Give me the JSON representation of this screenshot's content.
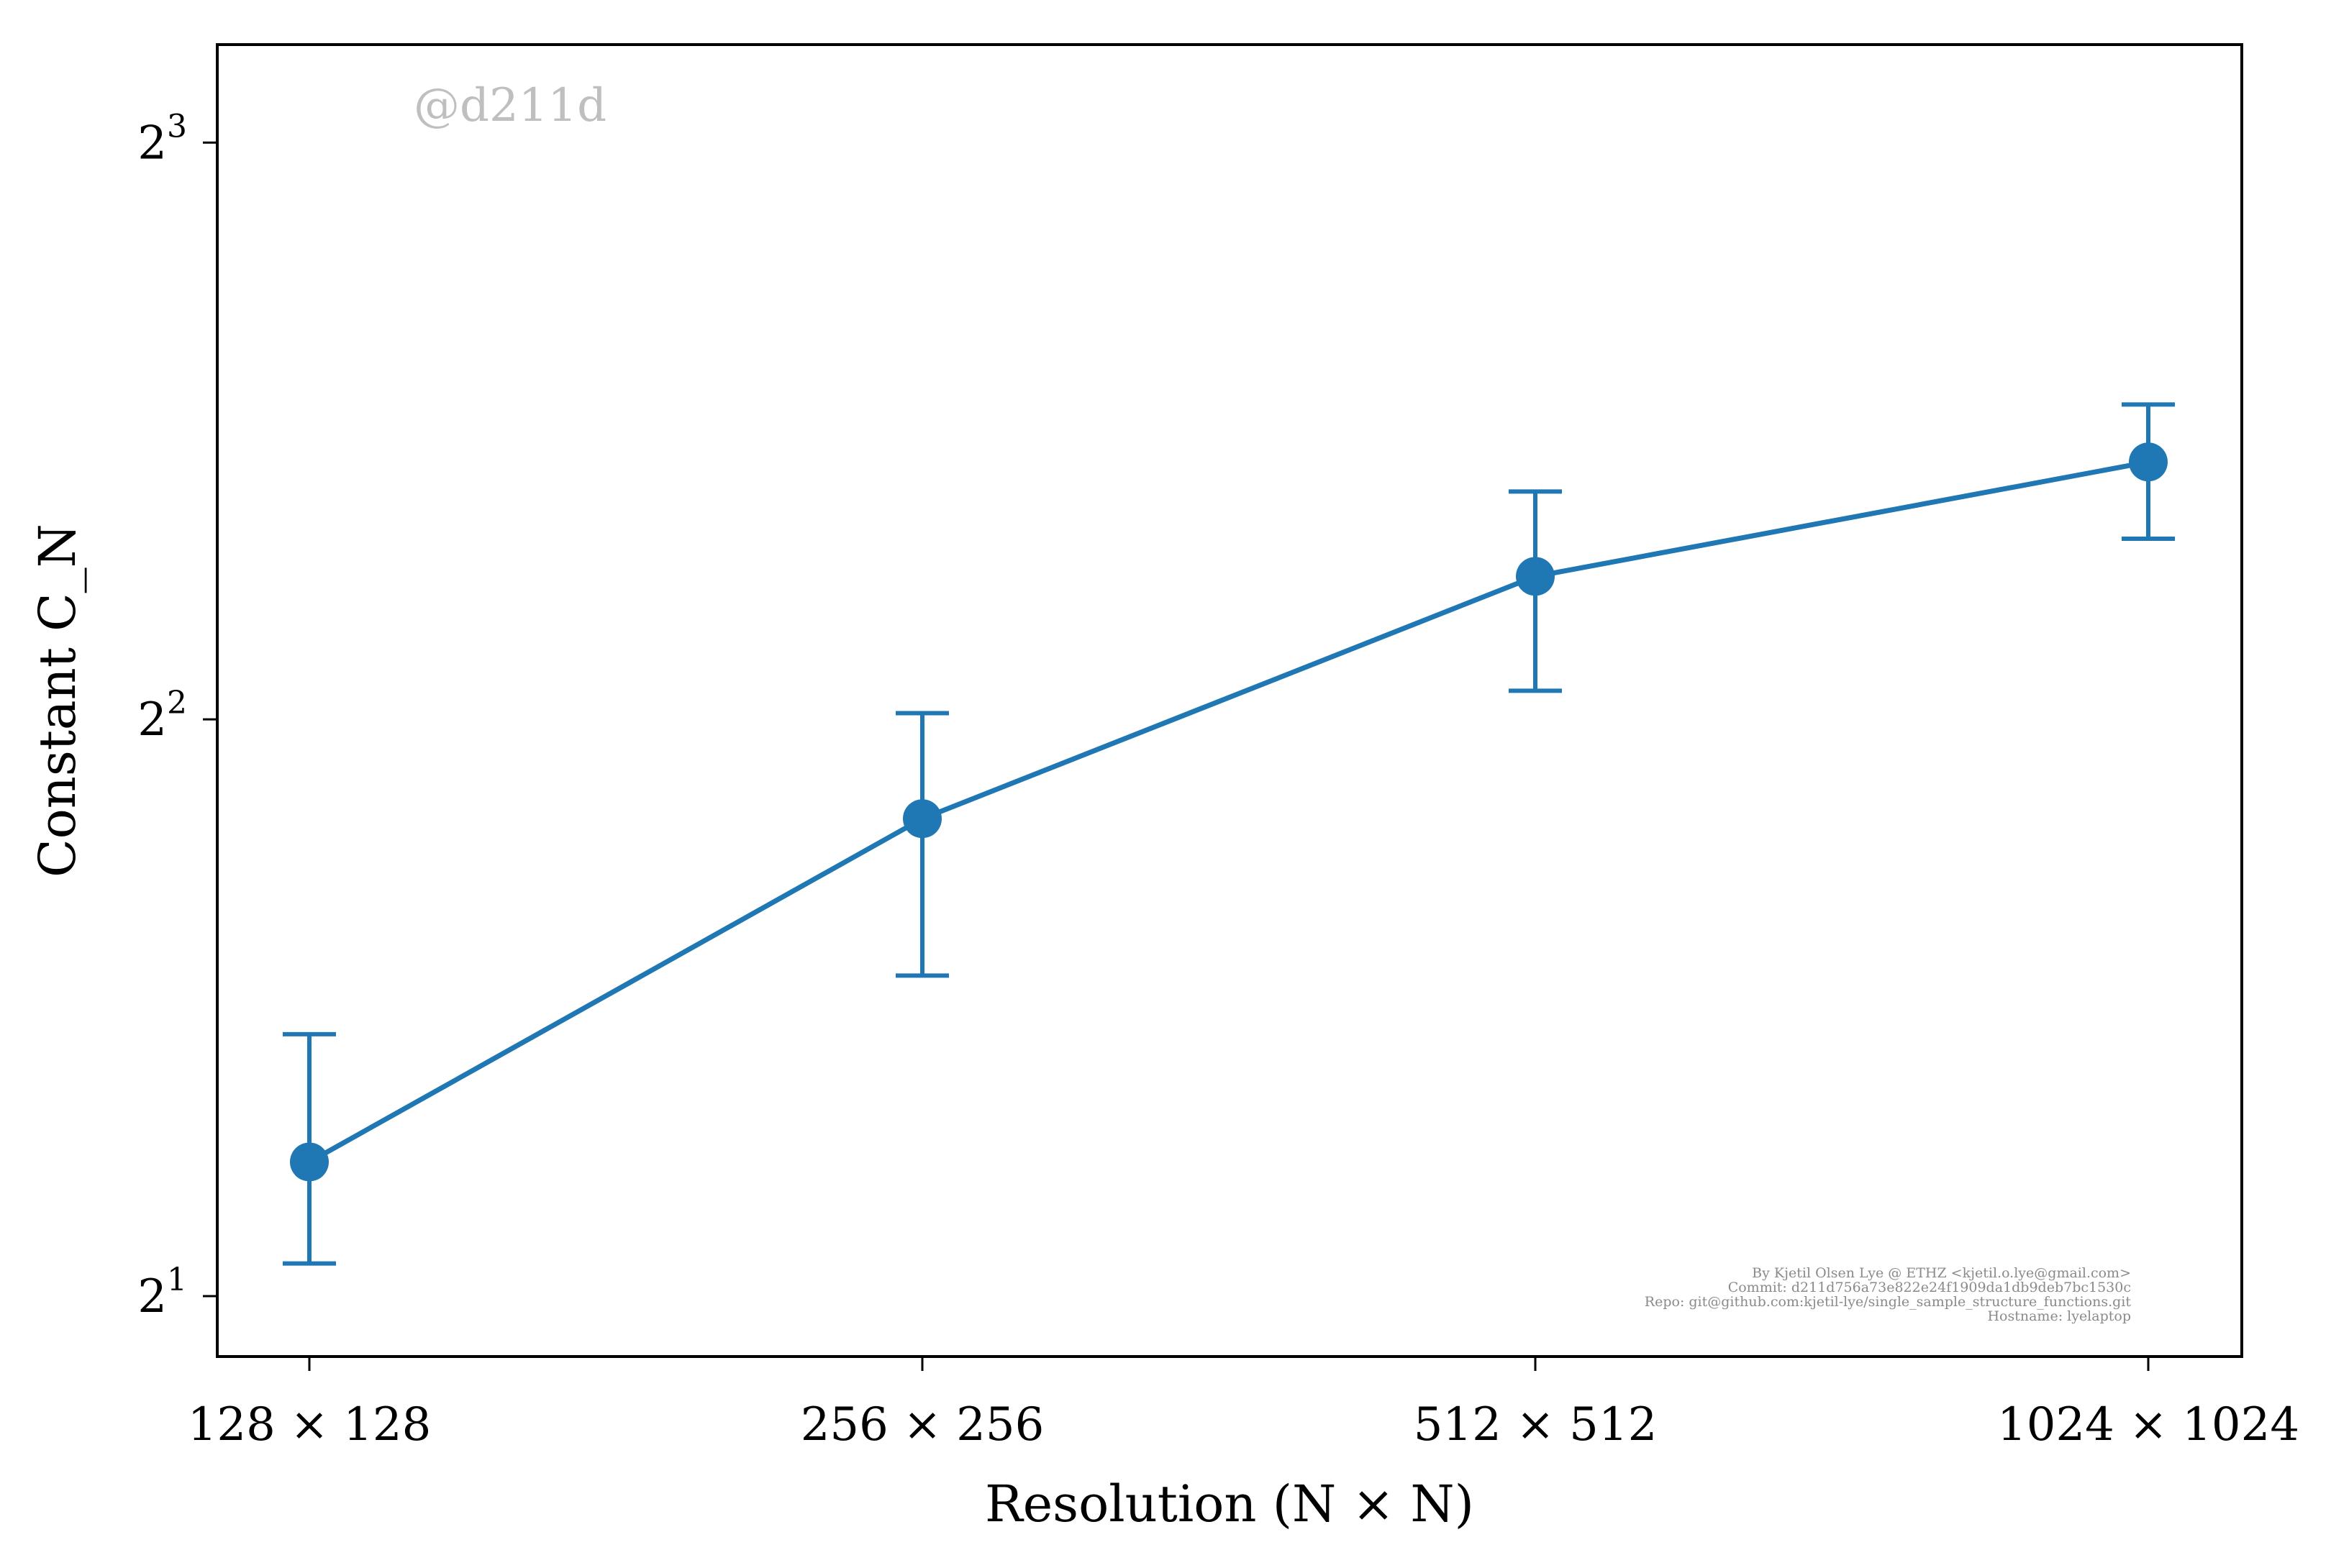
{
  "chart_data": {
    "type": "line",
    "xlabel": "Resolution (N × N)",
    "ylabel": "Constant C_N",
    "categories": [
      "128 × 128",
      "256 × 256",
      "512 × 512",
      "1024 × 1024"
    ],
    "y_scale": "log2",
    "ylim": [
      1.86,
      9.0
    ],
    "yticks": [
      2,
      4,
      8
    ],
    "ytick_labels": [
      {
        "base": "2",
        "exp": "1"
      },
      {
        "base": "2",
        "exp": "2"
      },
      {
        "base": "2",
        "exp": "3"
      }
    ],
    "grid": false,
    "series": [
      {
        "values": [
          2.35,
          3.55,
          4.75,
          5.45
        ],
        "err_low": [
          2.08,
          2.94,
          4.14,
          4.97
        ],
        "err_high": [
          2.74,
          4.03,
          5.26,
          5.84
        ],
        "color": "#1f77b4"
      }
    ],
    "watermark": "@d211d",
    "credits": [
      "By Kjetil Olsen Lye @ ETHZ <kjetil.o.lye@gmail.com>",
      "Commit: d211d756a73e822e24f1909da1db9deb7bc1530c",
      "Repo: git@github.com:kjetil-lye/single_sample_structure_functions.git",
      "Hostname: lyelaptop"
    ]
  }
}
